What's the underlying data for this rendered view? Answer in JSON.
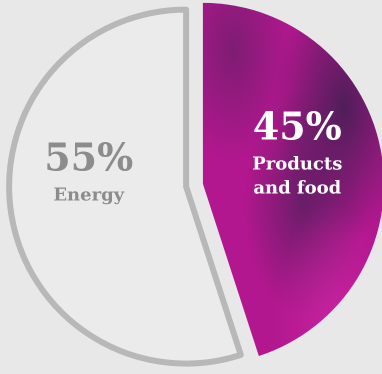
{
  "chart_data": {
    "type": "pie",
    "slices": [
      {
        "label_lines": [
          "Products",
          "and food"
        ],
        "value": 45,
        "value_label": "45%",
        "color": "#b3178f",
        "style": "filled"
      },
      {
        "label_lines": [
          "Energy"
        ],
        "value": 55,
        "value_label": "55%",
        "color": "#ebebeb",
        "outline_color": "#b8b8b8",
        "text_color": "#8c8c8c",
        "style": "outlined"
      }
    ],
    "start_angle_deg": 0,
    "direction": "clockwise",
    "exploded": true
  },
  "colors": {
    "background": "#e8e8e8",
    "filled_slice_text": "#ffffff"
  }
}
